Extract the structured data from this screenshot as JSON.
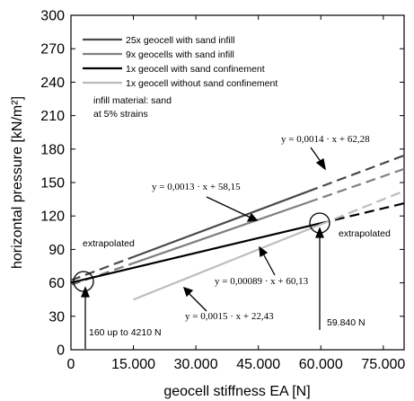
{
  "chart_data": {
    "type": "line",
    "xlabel": "geocell stiffness EA [N]",
    "ylabel": "horizontal pressure [kN/m²]",
    "xlim": [
      0,
      80000
    ],
    "ylim": [
      0,
      300
    ],
    "x_ticks": [
      0,
      15000,
      30000,
      45000,
      60000,
      75000
    ],
    "x_tick_labels": [
      "0",
      "15.000",
      "30.000",
      "45.000",
      "60.000",
      "75.000"
    ],
    "y_ticks": [
      0,
      30,
      60,
      90,
      120,
      150,
      180,
      210,
      240,
      270,
      300
    ],
    "y_tick_labels": [
      "0",
      "30",
      "60",
      "90",
      "120",
      "150",
      "180",
      "210",
      "240",
      "270",
      "300"
    ],
    "grid": false,
    "legend_position": "top-left",
    "series": [
      {
        "name": "25x geocell with sand infill",
        "color": "#4a4a4a",
        "slope": 0.0014,
        "intercept": 62.28,
        "solid_range": [
          15000,
          57000
        ],
        "dashed_ranges": [
          [
            0,
            15000
          ],
          [
            57000,
            80000
          ]
        ]
      },
      {
        "name": "9x geocells with sand infill",
        "color": "#7f7f7f",
        "slope": 0.0013,
        "intercept": 58.15,
        "solid_range": [
          15000,
          57000
        ],
        "dashed_ranges": [
          [
            0,
            15000
          ],
          [
            57000,
            80000
          ]
        ]
      },
      {
        "name": "1x geocell with sand confinement",
        "color": "#000000",
        "slope": 0.00089,
        "intercept": 60.13,
        "solid_range": [
          2000,
          59800
        ],
        "dashed_ranges": [
          [
            0,
            2000
          ],
          [
            59800,
            80000
          ]
        ]
      },
      {
        "name": "1x geocell without sand confinement",
        "color": "#bdbdbd",
        "slope": 0.0015,
        "intercept": 22.43,
        "solid_range": [
          15000,
          59800
        ],
        "dashed_ranges": [
          [
            59800,
            80000
          ]
        ]
      }
    ],
    "notes": [
      "infill material: sand",
      "at 5% strains"
    ],
    "equations": [
      "y = 0,0014 · x + 62,28",
      "y = 0,0013 · x + 58,15",
      "y = 0,00089 · x + 60,13",
      "y = 0,0015 · x + 22,43"
    ],
    "annotations": [
      "extrapolated",
      "extrapolated",
      "160 up to 4210 N",
      "59.840 N"
    ]
  }
}
